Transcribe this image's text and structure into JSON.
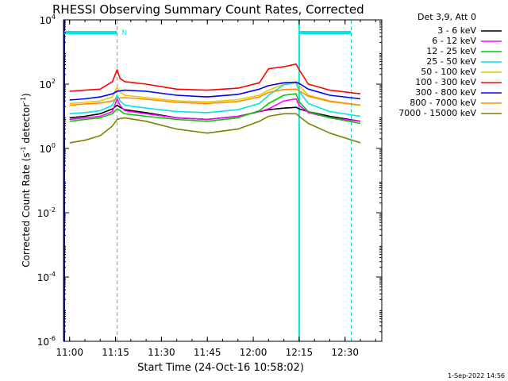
{
  "chart_data": {
    "type": "line",
    "title": "RHESSI Observing Summary Count Rates, Corrected",
    "xlabel": "Start Time (24-Oct-16 10:58:02)",
    "ylabel_main": "Corrected Count Rate (s",
    "ylabel_sup1": "-1",
    "ylabel_mid": " detector",
    "ylabel_sup2": "-1",
    "ylabel_end": ")",
    "yscale": "log",
    "ylim_exp": [
      -6,
      4
    ],
    "xlim_min": [
      -2,
      102
    ],
    "x_ticks": [
      {
        "min": 0,
        "label": "11:00"
      },
      {
        "min": 15,
        "label": "11:15"
      },
      {
        "min": 30,
        "label": "11:30"
      },
      {
        "min": 45,
        "label": "11:45"
      },
      {
        "min": 60,
        "label": "12:00"
      },
      {
        "min": 75,
        "label": "12:15"
      },
      {
        "min": 90,
        "label": "12:30"
      }
    ],
    "y_ticks": [
      {
        "exp": -6,
        "base": "10",
        "sup": "-6"
      },
      {
        "exp": -4,
        "base": "10",
        "sup": "-4"
      },
      {
        "exp": -2,
        "base": "10",
        "sup": "-2"
      },
      {
        "exp": 0,
        "base": "10",
        "sup": "0"
      },
      {
        "exp": 2,
        "base": "10",
        "sup": "2"
      },
      {
        "exp": 4,
        "base": "10",
        "sup": "4"
      }
    ],
    "legend_title": "Det 3,9, Att 0",
    "legend_placement": "top-right",
    "series": [
      {
        "name": "3 - 6 keV",
        "color": "#000000",
        "x": [
          0,
          5,
          10,
          14,
          15.5,
          16.5,
          18,
          25,
          35,
          45,
          55,
          62,
          65,
          70,
          74,
          75,
          78,
          85,
          95
        ],
        "y": [
          9,
          10,
          12,
          17,
          22,
          19,
          16,
          13,
          9,
          8,
          10,
          14,
          16,
          18,
          19,
          17,
          14,
          10,
          7
        ]
      },
      {
        "name": "6 - 12 keV",
        "color": "#ff00ff",
        "x": [
          0,
          5,
          10,
          14,
          15.5,
          16.5,
          18,
          25,
          35,
          45,
          55,
          62,
          65,
          70,
          74,
          75,
          78,
          85,
          95
        ],
        "y": [
          8,
          9,
          10,
          14,
          35,
          22,
          15,
          12,
          9,
          8,
          10,
          14,
          17,
          30,
          35,
          22,
          13,
          9,
          7
        ]
      },
      {
        "name": "12 - 25 keV",
        "color": "#00cc00",
        "x": [
          0,
          5,
          10,
          14,
          15.5,
          16.5,
          18,
          25,
          35,
          45,
          55,
          62,
          65,
          70,
          74,
          75,
          78,
          85,
          95
        ],
        "y": [
          7,
          8,
          9,
          12,
          17,
          15,
          12,
          10,
          8,
          7,
          9,
          15,
          25,
          45,
          50,
          28,
          14,
          9,
          6
        ]
      },
      {
        "name": "25 - 50 keV",
        "color": "#00e5e5",
        "x": [
          0,
          5,
          10,
          14,
          15.5,
          16.5,
          18,
          25,
          35,
          45,
          55,
          62,
          65,
          70,
          74,
          75,
          78,
          85,
          95
        ],
        "y": [
          12,
          13,
          15,
          22,
          45,
          30,
          22,
          18,
          14,
          13,
          16,
          25,
          45,
          95,
          110,
          60,
          25,
          14,
          10
        ]
      },
      {
        "name": "50 - 100 keV",
        "color": "#e6c800",
        "x": [
          0,
          5,
          10,
          14,
          15.5,
          16.5,
          18,
          25,
          35,
          45,
          55,
          62,
          65,
          70,
          74,
          75,
          78,
          85,
          95
        ],
        "y": [
          25,
          27,
          30,
          40,
          80,
          55,
          45,
          38,
          30,
          28,
          33,
          45,
          65,
          100,
          115,
          90,
          45,
          30,
          22
        ]
      },
      {
        "name": "100 - 300 keV",
        "color": "#ff0000",
        "x": [
          0,
          5,
          10,
          14,
          15.5,
          16.5,
          18,
          25,
          35,
          45,
          55,
          62,
          65,
          70,
          74,
          75,
          78,
          85,
          95
        ],
        "y": [
          60,
          65,
          70,
          120,
          280,
          150,
          120,
          100,
          70,
          65,
          75,
          110,
          300,
          350,
          420,
          280,
          100,
          65,
          50
        ]
      },
      {
        "name": "300 - 800 keV",
        "color": "#0000ff",
        "x": [
          0,
          5,
          10,
          14,
          15.5,
          16.5,
          18,
          25,
          35,
          45,
          55,
          62,
          65,
          70,
          74,
          75,
          78,
          85,
          95
        ],
        "y": [
          32,
          35,
          40,
          50,
          60,
          62,
          65,
          60,
          45,
          40,
          48,
          70,
          90,
          110,
          115,
          105,
          70,
          45,
          35
        ]
      },
      {
        "name": "800 - 7000 keV",
        "color": "#ff8c00",
        "x": [
          0,
          5,
          10,
          14,
          15.5,
          16.5,
          18,
          25,
          35,
          45,
          55,
          62,
          65,
          70,
          74,
          75,
          78,
          85,
          95
        ],
        "y": [
          22,
          24,
          26,
          30,
          36,
          37,
          38,
          34,
          27,
          25,
          29,
          40,
          55,
          68,
          70,
          62,
          42,
          29,
          22
        ]
      },
      {
        "name": "7000 - 15000 keV",
        "color": "#808000",
        "x": [
          0,
          5,
          10,
          14,
          15.5,
          16.5,
          18,
          25,
          35,
          45,
          55,
          62,
          65,
          70,
          74,
          75,
          78,
          85,
          95
        ],
        "y": [
          1.5,
          1.8,
          2.5,
          5,
          8,
          8.5,
          9,
          7,
          4,
          3,
          4,
          7,
          10,
          12,
          12,
          10,
          6,
          3,
          1.5
        ]
      }
    ],
    "annotations": {
      "N_label": "N",
      "eclipse_start_min": -2,
      "saa_or_flag_end_min": 15.5,
      "flag2_start_min": 75,
      "flag2_end_min": 92
    }
  },
  "footer_date": "1-Sep-2022 14:56"
}
